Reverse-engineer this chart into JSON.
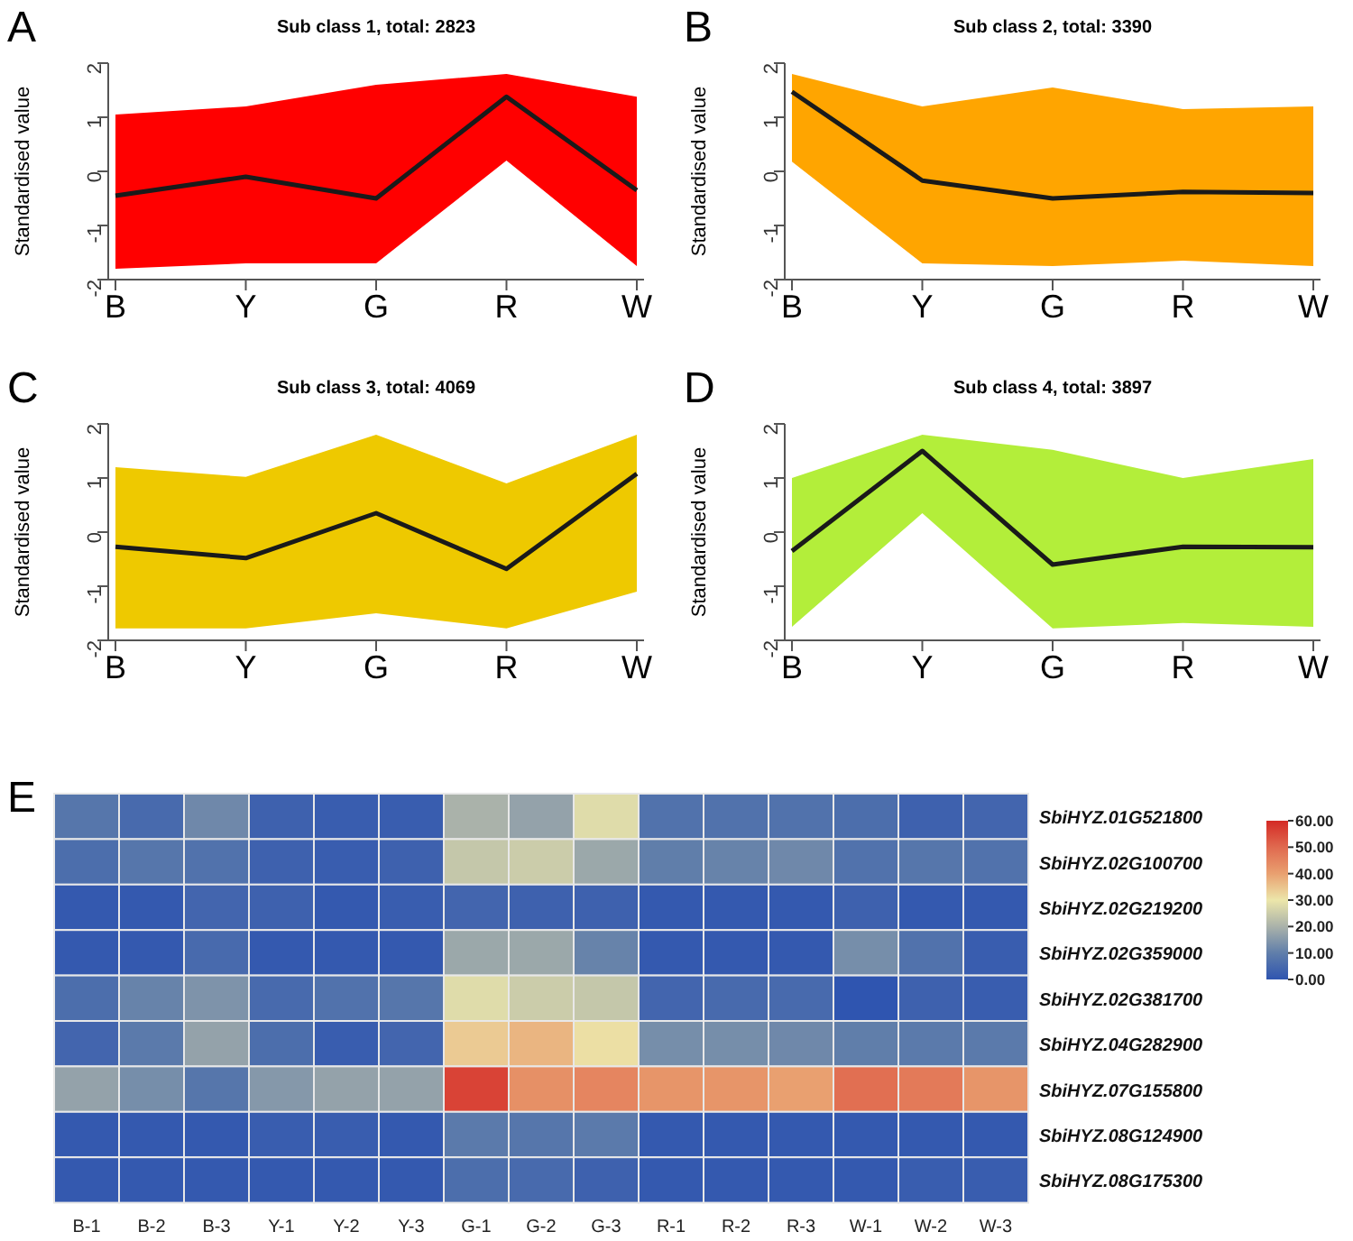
{
  "chart_data": [
    {
      "type": "line",
      "title": "Sub class 1, total: 2823",
      "ylabel": "Standardised value",
      "annotations": [
        "A"
      ],
      "categories": [
        "B",
        "Y",
        "G",
        "R",
        "W"
      ],
      "ylim": [
        -2,
        2
      ],
      "yticks": [
        -2,
        -1,
        0,
        1,
        2
      ],
      "colors": [
        "#ff0000"
      ],
      "series": [
        {
          "color": "#1a1a1a",
          "values": [
            -0.45,
            -0.1,
            -0.5,
            1.38,
            -0.35
          ],
          "lower": [
            -1.8,
            -1.7,
            -1.7,
            0.2,
            -1.75
          ],
          "upper": [
            1.05,
            1.2,
            1.6,
            1.8,
            1.38
          ]
        }
      ]
    },
    {
      "type": "line",
      "title": "Sub class 2, total: 3390",
      "ylabel": "Standardised value",
      "annotations": [
        "B"
      ],
      "categories": [
        "B",
        "Y",
        "G",
        "R",
        "W"
      ],
      "ylim": [
        -2,
        2
      ],
      "yticks": [
        -2,
        -1,
        0,
        1,
        2
      ],
      "colors": [
        "#ffa500"
      ],
      "series": [
        {
          "color": "#1a1a1a",
          "values": [
            1.47,
            -0.17,
            -0.5,
            -0.38,
            -0.4
          ],
          "lower": [
            0.18,
            -1.7,
            -1.75,
            -1.65,
            -1.75
          ],
          "upper": [
            1.8,
            1.2,
            1.55,
            1.15,
            1.2
          ]
        }
      ]
    },
    {
      "type": "line",
      "title": "Sub class 3, total: 4069",
      "ylabel": "Standardised value",
      "annotations": [
        "C"
      ],
      "categories": [
        "B",
        "Y",
        "G",
        "R",
        "W"
      ],
      "ylim": [
        -2,
        2
      ],
      "yticks": [
        -2,
        -1,
        0,
        1,
        2
      ],
      "colors": [
        "#eec900"
      ],
      "series": [
        {
          "color": "#1a1a1a",
          "values": [
            -0.27,
            -0.48,
            0.35,
            -0.68,
            1.08
          ],
          "lower": [
            -1.78,
            -1.78,
            -1.5,
            -1.78,
            -1.1
          ],
          "upper": [
            1.2,
            1.02,
            1.8,
            0.9,
            1.8
          ]
        }
      ]
    },
    {
      "type": "line",
      "title": "Sub class 4, total: 3897",
      "ylabel": "Standardised value",
      "annotations": [
        "D"
      ],
      "categories": [
        "B",
        "Y",
        "G",
        "R",
        "W"
      ],
      "ylim": [
        -2,
        2
      ],
      "yticks": [
        -2,
        -1,
        0,
        1,
        2
      ],
      "colors": [
        "#b3ee3a"
      ],
      "series": [
        {
          "color": "#1a1a1a",
          "values": [
            -0.35,
            1.5,
            -0.6,
            -0.27,
            -0.28
          ],
          "lower": [
            -1.75,
            0.35,
            -1.78,
            -1.68,
            -1.75
          ],
          "upper": [
            1.0,
            1.8,
            1.52,
            1.0,
            1.35
          ]
        }
      ]
    },
    {
      "type": "heatmap",
      "annotations": [
        "E"
      ],
      "categories": [
        "B-1",
        "B-2",
        "B-3",
        "Y-1",
        "Y-2",
        "Y-3",
        "G-1",
        "G-2",
        "G-3",
        "R-1",
        "R-2",
        "R-3",
        "W-1",
        "W-2",
        "W-3"
      ],
      "y_categories": [
        "SbiHYZ.01G521800",
        "SbiHYZ.02G100700",
        "SbiHYZ.02G219200",
        "SbiHYZ.02G359000",
        "SbiHYZ.02G381700",
        "SbiHYZ.04G282900",
        "SbiHYZ.07G155800",
        "SbiHYZ.08G124900",
        "SbiHYZ.08G175300"
      ],
      "cells": [
        [
          8,
          5,
          12,
          3,
          2,
          2,
          20,
          17,
          28,
          7,
          7,
          7,
          6,
          3,
          4
        ],
        [
          6,
          8,
          7,
          3,
          2,
          3,
          24,
          25,
          18,
          10,
          11,
          12,
          7,
          8,
          7
        ],
        [
          1,
          1,
          4,
          3,
          1,
          2,
          4,
          3,
          3,
          1,
          1,
          1,
          3,
          1,
          1
        ],
        [
          1,
          1,
          5,
          1,
          1,
          1,
          18,
          18,
          11,
          1,
          1,
          1,
          13,
          7,
          2
        ],
        [
          6,
          11,
          14,
          5,
          7,
          8,
          28,
          25,
          24,
          4,
          5,
          5,
          0,
          3,
          2
        ],
        [
          4,
          9,
          17,
          6,
          2,
          4,
          34,
          37,
          31,
          13,
          13,
          12,
          10,
          9,
          9
        ],
        [
          17,
          13,
          8,
          15,
          17,
          17,
          56,
          43,
          45,
          42,
          42,
          40,
          49,
          47,
          42
        ],
        [
          1,
          1,
          1,
          2,
          2,
          1,
          9,
          8,
          9,
          1,
          1,
          1,
          1,
          1,
          1
        ],
        [
          1,
          1,
          1,
          1,
          1,
          1,
          6,
          5,
          3,
          1,
          1,
          1,
          1,
          2,
          2
        ]
      ],
      "clim": [
        0,
        60
      ],
      "cticks": [
        {
          "value": 0,
          "label": "0.00"
        },
        {
          "value": 10,
          "label": "10.00"
        },
        {
          "value": 20,
          "label": "20.00"
        },
        {
          "value": 30,
          "label": "30.00"
        },
        {
          "value": 40,
          "label": "40.00"
        },
        {
          "value": 50,
          "label": "50.00"
        },
        {
          "value": 60,
          "label": "60.00"
        }
      ]
    }
  ]
}
